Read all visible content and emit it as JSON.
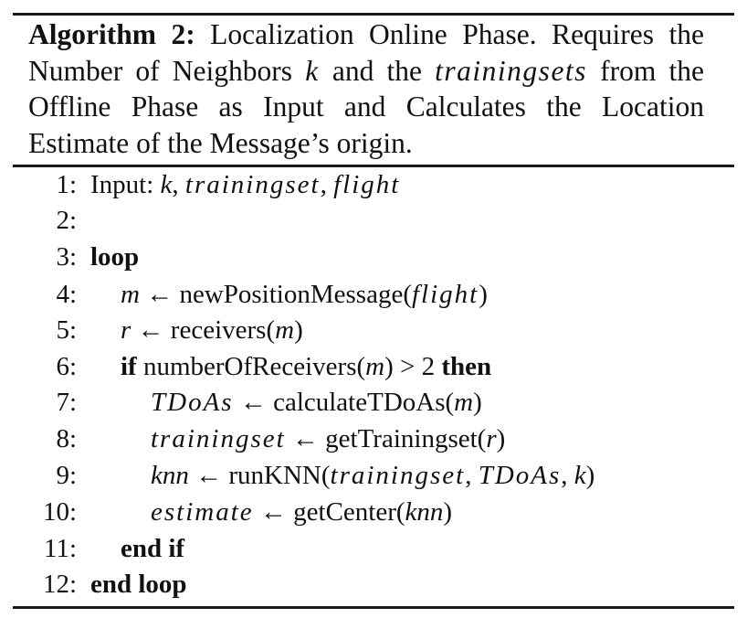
{
  "caption": {
    "label": "Algorithm 2:",
    "part1": " Localization Online Phase. Requires the Number of Neighbors ",
    "var_k": "k",
    "part2": " and the ",
    "var_trainingsets": "trainingsets",
    "part3": " from the Offline Phase as Input and Calculates the Location Estimate of the Message’s origin."
  },
  "lines": [
    {
      "num": "1:",
      "a": "Input: ",
      "b": "k",
      "c": ", ",
      "d": "trainingset",
      "e": ", ",
      "f": "flight"
    },
    {
      "num": "2:"
    },
    {
      "num": "3:",
      "kw": "loop"
    },
    {
      "num": "4:",
      "lhs": "m",
      "arrow": " ← ",
      "call": "newPositionMessage(",
      "arg": "flight",
      "close": ")"
    },
    {
      "num": "5:",
      "lhs": "r",
      "arrow": " ← ",
      "call": "receivers(",
      "arg": "m",
      "close": ")"
    },
    {
      "num": "6:",
      "kw1": "if",
      "call": " numberOfReceivers(",
      "arg": "m",
      "close": ") > 2 ",
      "kw2": "then"
    },
    {
      "num": "7:",
      "lhs": "TDoAs",
      "arrow": " ← ",
      "call": "calculateTDoAs(",
      "arg": "m",
      "close": ")"
    },
    {
      "num": "8:",
      "lhs": "trainingset",
      "arrow": " ← ",
      "call": "getTrainingset(",
      "arg": "r",
      "close": ")"
    },
    {
      "num": "9:",
      "lhs": "knn",
      "arrow": " ← ",
      "call": "runKNN(",
      "arg1": "trainingset",
      "sep1": ", ",
      "arg2": "TDoAs",
      "sep2": ", ",
      "arg3": "k",
      "close": ")"
    },
    {
      "num": "10:",
      "lhs": "estimate",
      "arrow": " ← ",
      "call": "getCenter(",
      "arg": "knn",
      "close": ")"
    },
    {
      "num": "11:",
      "kw": "end if"
    },
    {
      "num": "12:",
      "kw": "end loop"
    }
  ]
}
